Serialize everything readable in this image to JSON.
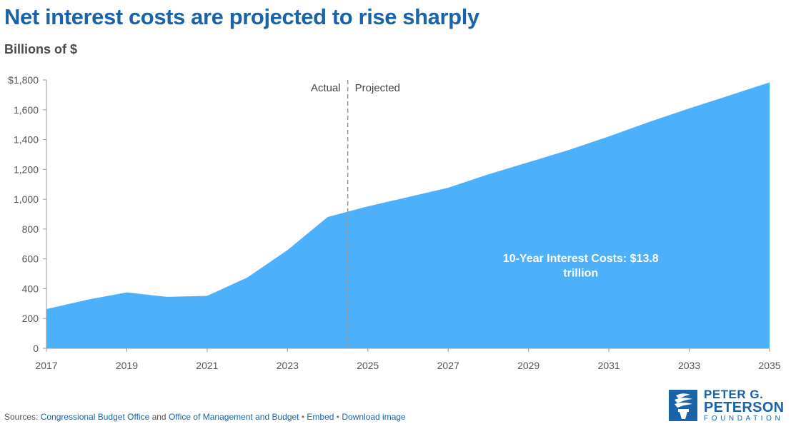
{
  "title": "Net interest costs are projected to rise sharply",
  "subtitle": "Billions of $",
  "chart_data": {
    "type": "area",
    "x": [
      2017,
      2018,
      2019,
      2020,
      2021,
      2022,
      2023,
      2024,
      2025,
      2026,
      2027,
      2028,
      2029,
      2030,
      2031,
      2032,
      2033,
      2034,
      2035
    ],
    "series": [
      {
        "values": [
          263,
          325,
          375,
          345,
          352,
          475,
          659,
          881,
          952,
          1014,
          1077,
          1167,
          1248,
          1330,
          1421,
          1518,
          1609,
          1696,
          1784
        ]
      }
    ],
    "xlim": [
      2017,
      2035
    ],
    "ylim": [
      0,
      1800
    ],
    "x_ticks": [
      2017,
      2019,
      2021,
      2023,
      2025,
      2027,
      2029,
      2031,
      2033,
      2035
    ],
    "x_tick_labels": [
      "2017",
      "2019",
      "2021",
      "2023",
      "2025",
      "2027",
      "2029",
      "2031",
      "2033",
      "2035"
    ],
    "y_ticks": [
      0,
      200,
      400,
      600,
      800,
      1000,
      1200,
      1400,
      1600,
      1800
    ],
    "y_tick_labels": [
      "0",
      "200",
      "400",
      "600",
      "800",
      "1,000",
      "1,200",
      "1,400",
      "1,600",
      "$1,800"
    ],
    "divider_x": 2024.5,
    "divider_labels": {
      "left": "Actual",
      "right": "Projected"
    },
    "annotation": {
      "line1": "10-Year Interest Costs: $13.8",
      "line2": "trillion"
    },
    "fill_color": "#4db0fb",
    "grid": false
  },
  "footer": {
    "prefix": "Sources: ",
    "source1": "Congressional Budget Office",
    "and_text": " and ",
    "source2": "Office of Management and Budget",
    "bullet": "•",
    "embed": "Embed",
    "download": "Download image"
  },
  "logo": {
    "line1": "PETER G.",
    "line2": "PETERSON",
    "line3": "FOUNDATION"
  },
  "colors": {
    "title": "#1a63a8",
    "link": "#1a63a8",
    "area": "#4db0fb"
  }
}
